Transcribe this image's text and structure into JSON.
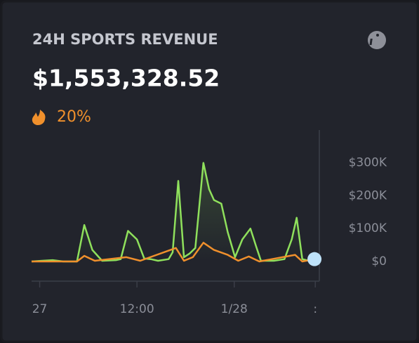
{
  "header": {
    "title": "24H SPORTS REVENUE",
    "amount": "$1,553,328.52",
    "change": "20%"
  },
  "chart_data": {
    "type": "line",
    "xlim": [
      -1,
      34.5
    ],
    "xticks": [
      {
        "value": 0,
        "label": "27"
      },
      {
        "value": 12,
        "label": "12:00"
      },
      {
        "value": 24,
        "label": "1/28"
      },
      {
        "value": 34,
        "label": ":"
      }
    ],
    "ylim": [
      -60000,
      400000
    ],
    "yticks": [
      {
        "value": 0,
        "label": "$0"
      },
      {
        "value": 100000,
        "label": "$100K"
      },
      {
        "value": 200000,
        "label": "$200K"
      },
      {
        "value": 300000,
        "label": "$300K"
      }
    ],
    "series": [
      {
        "color": "#8fe05c",
        "x": [
          -1.0,
          0.3,
          1.6,
          2.9,
          4.6,
          5.5,
          6.5,
          7.7,
          9.4,
          10.0,
          10.9,
          12.0,
          12.9,
          13.7,
          14.6,
          15.9,
          16.4,
          17.1,
          17.8,
          18.5,
          19.2,
          20.2,
          20.9,
          21.5,
          22.4,
          23.2,
          24.1,
          25.0,
          26.0,
          26.7,
          27.3,
          28.9,
          30.2,
          31.1,
          31.7,
          32.4,
          33.2,
          33.9
        ],
        "values": [
          0,
          2000,
          4000,
          0,
          0,
          111000,
          35000,
          2000,
          4000,
          7000,
          93000,
          67000,
          9000,
          7000,
          2000,
          7000,
          28000,
          245000,
          13000,
          24000,
          41000,
          300000,
          220000,
          187000,
          176000,
          89000,
          13000,
          67000,
          100000,
          46000,
          2000,
          2000,
          7000,
          67000,
          133000,
          7000,
          2000,
          11000
        ]
      },
      {
        "color": "#f0902c",
        "x": [
          -1.0,
          4.6,
          5.5,
          6.8,
          10.7,
          12.4,
          16.8,
          17.8,
          18.9,
          20.2,
          21.5,
          23.2,
          24.5,
          25.8,
          27.1,
          31.5,
          32.4,
          33.9
        ],
        "values": [
          0,
          0,
          17000,
          2000,
          13000,
          2000,
          41000,
          2000,
          13000,
          57000,
          35000,
          20000,
          2000,
          15000,
          0,
          20000,
          0,
          7000
        ]
      }
    ]
  }
}
